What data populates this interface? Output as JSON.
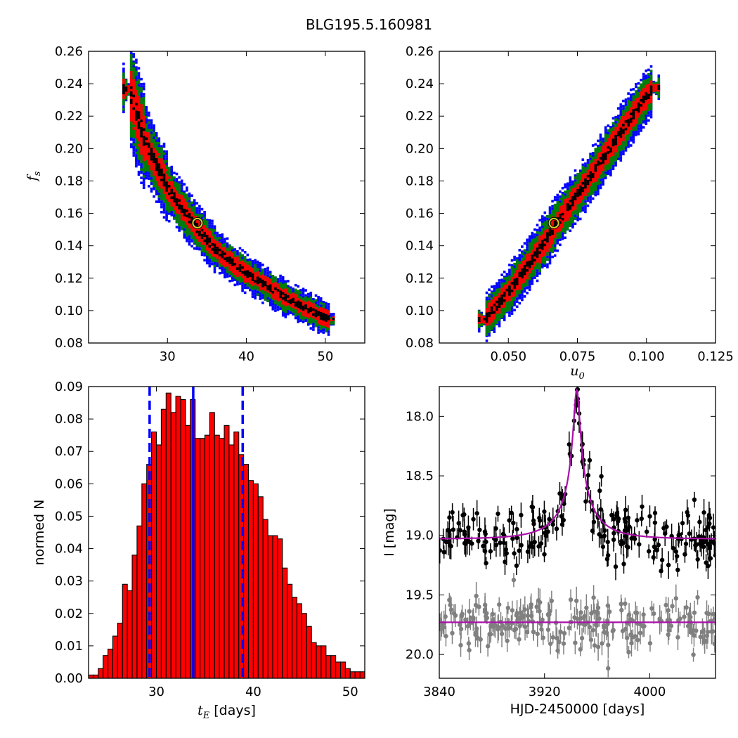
{
  "figure": {
    "title": "BLG195.5.160981"
  },
  "chart_data": [
    {
      "id": "te-fs",
      "type": "heatmap",
      "title": "",
      "xlabel": "",
      "ylabel": "f_s",
      "xlim": [
        20,
        55
      ],
      "ylim": [
        0.08,
        0.26
      ],
      "xticks": [
        30,
        40,
        50
      ],
      "yticks": [
        0.08,
        0.1,
        0.12,
        0.14,
        0.16,
        0.18,
        0.2,
        0.22,
        0.24,
        0.26
      ],
      "ytick_decimals": 2,
      "confidence_region_colors": [
        "#0000ff",
        "#008000",
        "#ff0000",
        "#000000"
      ],
      "ridge": [
        [
          25,
          0.237
        ],
        [
          27,
          0.205
        ],
        [
          30,
          0.175
        ],
        [
          33,
          0.155
        ],
        [
          36,
          0.138
        ],
        [
          40,
          0.123
        ],
        [
          45,
          0.108
        ],
        [
          49,
          0.098
        ],
        [
          50.5,
          0.095
        ]
      ],
      "best_fit": {
        "x": 33.8,
        "y": 0.154
      }
    },
    {
      "id": "u0-fs",
      "type": "heatmap",
      "title": "",
      "xlabel": "u_0",
      "ylabel": "",
      "xlim": [
        0.025,
        0.125
      ],
      "ylim": [
        0.08,
        0.26
      ],
      "xticks": [
        0.05,
        0.075,
        0.1,
        0.125
      ],
      "xtick_labels": [
        "0.050",
        "0.075",
        "0.100",
        "0.125"
      ],
      "yticks": [
        0.08,
        0.1,
        0.12,
        0.14,
        0.16,
        0.18,
        0.2,
        0.22,
        0.24,
        0.26
      ],
      "ytick_decimals": 2,
      "confidence_region_colors": [
        "#0000ff",
        "#008000",
        "#ff0000",
        "#000000"
      ],
      "ridge": [
        [
          0.041,
          0.095
        ],
        [
          0.05,
          0.113
        ],
        [
          0.06,
          0.136
        ],
        [
          0.067,
          0.154
        ],
        [
          0.075,
          0.173
        ],
        [
          0.085,
          0.197
        ],
        [
          0.095,
          0.222
        ],
        [
          0.102,
          0.238
        ]
      ],
      "best_fit": {
        "x": 0.0665,
        "y": 0.154
      }
    },
    {
      "id": "te-hist",
      "type": "bar",
      "title": "",
      "xlabel": "t_E [days]",
      "ylabel": "normed N",
      "xlim": [
        23,
        51.5
      ],
      "ylim": [
        0,
        0.09
      ],
      "xticks": [
        30,
        40,
        50
      ],
      "yticks": [
        0,
        0.01,
        0.02,
        0.03,
        0.04,
        0.05,
        0.06,
        0.07,
        0.08,
        0.09
      ],
      "ytick_decimals": 2,
      "bin_start": 23.0,
      "bin_width": 0.5,
      "values": [
        0.001,
        0.001,
        0.003,
        0.007,
        0.009,
        0.013,
        0.017,
        0.029,
        0.027,
        0.038,
        0.047,
        0.06,
        0.066,
        0.076,
        0.072,
        0.083,
        0.088,
        0.082,
        0.087,
        0.086,
        0.078,
        0.086,
        0.074,
        0.074,
        0.075,
        0.082,
        0.075,
        0.074,
        0.078,
        0.072,
        0.076,
        0.069,
        0.066,
        0.061,
        0.06,
        0.056,
        0.049,
        0.044,
        0.044,
        0.043,
        0.034,
        0.029,
        0.025,
        0.023,
        0.02,
        0.016,
        0.011,
        0.01,
        0.01,
        0.007,
        0.007,
        0.005,
        0.005,
        0.003,
        0.002,
        0.002,
        0.002
      ],
      "bar_color": "#ff0000",
      "median": 33.8,
      "interval": [
        29.3,
        38.9
      ],
      "line_color": "#0000ff"
    },
    {
      "id": "lightcurve",
      "type": "scatter",
      "title": "",
      "xlabel": "HJD-2450000 [days]",
      "ylabel": "I [mag]",
      "xlim": [
        3840,
        4050
      ],
      "ylim": [
        20.2,
        17.75
      ],
      "xticks": [
        3840,
        3920,
        4000
      ],
      "yticks": [
        18.0,
        18.5,
        19.0,
        19.5,
        20.0
      ],
      "ytick_decimals": 1,
      "model": {
        "t0": 3944.5,
        "tE": 33.8,
        "u0": 0.0665,
        "fs": 0.154,
        "baseline": 19.03,
        "color": "#aa10aa"
      },
      "residual_baseline": 19.73,
      "series": [
        {
          "color": "#000000",
          "scatter_sigma": 0.11,
          "errorbar": 0.08
        },
        {
          "color": "#808080",
          "scatter_sigma": 0.11,
          "errorbar": 0.08
        }
      ]
    }
  ]
}
